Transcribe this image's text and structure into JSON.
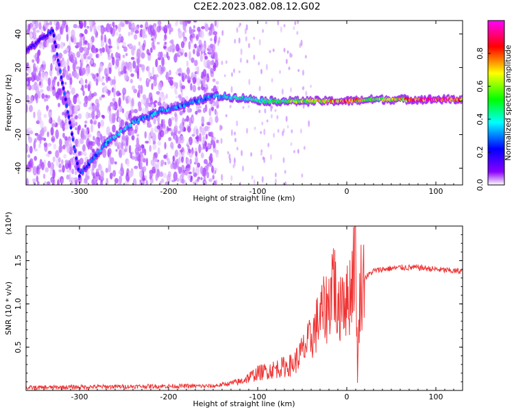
{
  "title": "C2E2.2023.082.08.12.G02",
  "chart_data": [
    {
      "type": "heatmap",
      "xlabel": "Height of straight line (km)",
      "ylabel": "Frequency (Hz)",
      "xlim": [
        -360,
        130
      ],
      "ylim": [
        -50,
        48
      ],
      "x_ticks": [
        -300,
        -200,
        -100,
        0,
        100
      ],
      "y_ticks": [
        -40,
        -20,
        0,
        20,
        40
      ],
      "colorbar": {
        "label": "Normalized spectral amplitude",
        "range": [
          0.0,
          1.0
        ],
        "ticks": [
          0.0,
          0.2,
          0.4,
          0.6,
          0.8
        ],
        "colors": [
          "#ffffff",
          "#8a00ff",
          "#0000ff",
          "#00ffff",
          "#00ff00",
          "#ffff00",
          "#ff0000",
          "#ff00ff"
        ]
      },
      "ridge": {
        "x": [
          -360,
          -330,
          -300,
          -270,
          -240,
          -210,
          -180,
          -150,
          -120,
          -90,
          -60,
          -30,
          0,
          30,
          60,
          90,
          120,
          130
        ],
        "y": [
          30,
          42,
          -44,
          -25,
          -13,
          -6,
          -2,
          3,
          2,
          0,
          0,
          0,
          0,
          1,
          1,
          1,
          1,
          1
        ],
        "amplitude": [
          0.2,
          0.3,
          0.3,
          0.4,
          0.4,
          0.4,
          0.35,
          0.4,
          0.45,
          0.5,
          0.6,
          0.7,
          0.85,
          0.6,
          0.7,
          0.9,
          0.85,
          0.8
        ]
      }
    },
    {
      "type": "line",
      "xlabel": "Height of straight line (km)",
      "ylabel": "SNR (10 * v/v)",
      "y_multiplier": "(x10⁴)",
      "xlim": [
        -360,
        130
      ],
      "ylim": [
        0,
        1.9
      ],
      "x_ticks": [
        -300,
        -200,
        -100,
        0,
        100
      ],
      "y_ticks": [
        0.5,
        1.0,
        1.5
      ],
      "color": "#ee3333",
      "series": [
        {
          "x": [
            -360,
            -300,
            -200,
            -150,
            -120,
            -100,
            -80,
            -60,
            -50,
            -40,
            -30,
            -20,
            -15,
            -10,
            -5,
            0,
            5,
            10,
            12,
            15,
            20,
            30,
            40,
            60,
            80,
            100,
            120,
            130
          ],
          "values": [
            0.03,
            0.04,
            0.05,
            0.05,
            0.1,
            0.2,
            0.25,
            0.3,
            0.45,
            0.6,
            0.85,
            1.0,
            1.4,
            0.8,
            1.2,
            1.0,
            1.2,
            1.8,
            0.15,
            1.2,
            1.3,
            1.38,
            1.4,
            1.42,
            1.42,
            1.4,
            1.38,
            1.38
          ]
        }
      ]
    }
  ]
}
